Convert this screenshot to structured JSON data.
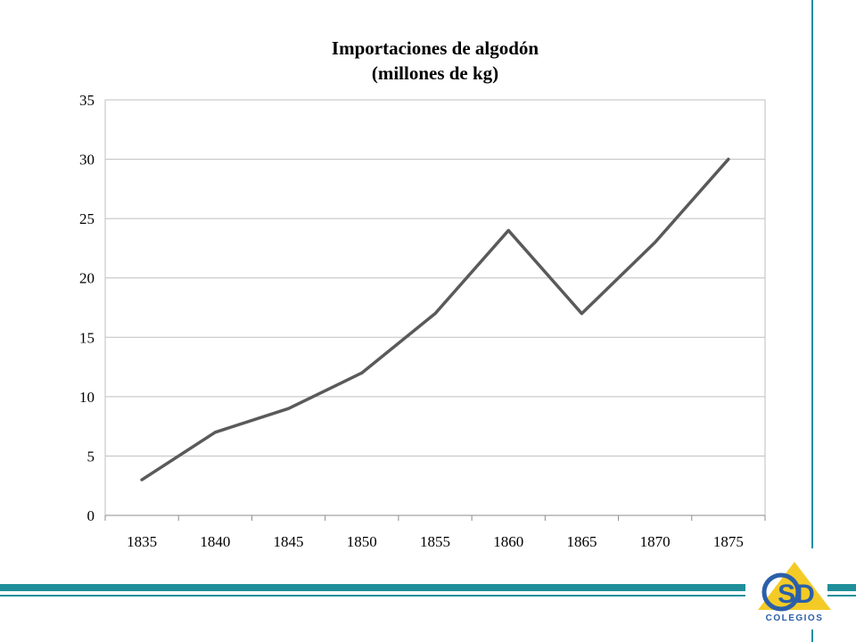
{
  "chart_data": {
    "type": "line",
    "title": "Importaciones de algodón",
    "subtitle": "(millones de kg)",
    "categories": [
      "1835",
      "1840",
      "1845",
      "1850",
      "1855",
      "1860",
      "1865",
      "1870",
      "1875"
    ],
    "series": [
      {
        "values": [
          3,
          7,
          9,
          12,
          17,
          24,
          17,
          23,
          30
        ]
      }
    ],
    "ylim": [
      0,
      35
    ],
    "yticks": [
      0,
      5,
      10,
      15,
      20,
      25,
      30,
      35
    ],
    "grid": true,
    "line_color": "#5a5a5a",
    "grid_color": "#bfbfbf"
  },
  "logo": {
    "text": "Colegios",
    "mark": "CSD",
    "colors": {
      "blue": "#2b5fa8",
      "yellow": "#f2c200",
      "teal": "#1f8f9a"
    }
  }
}
